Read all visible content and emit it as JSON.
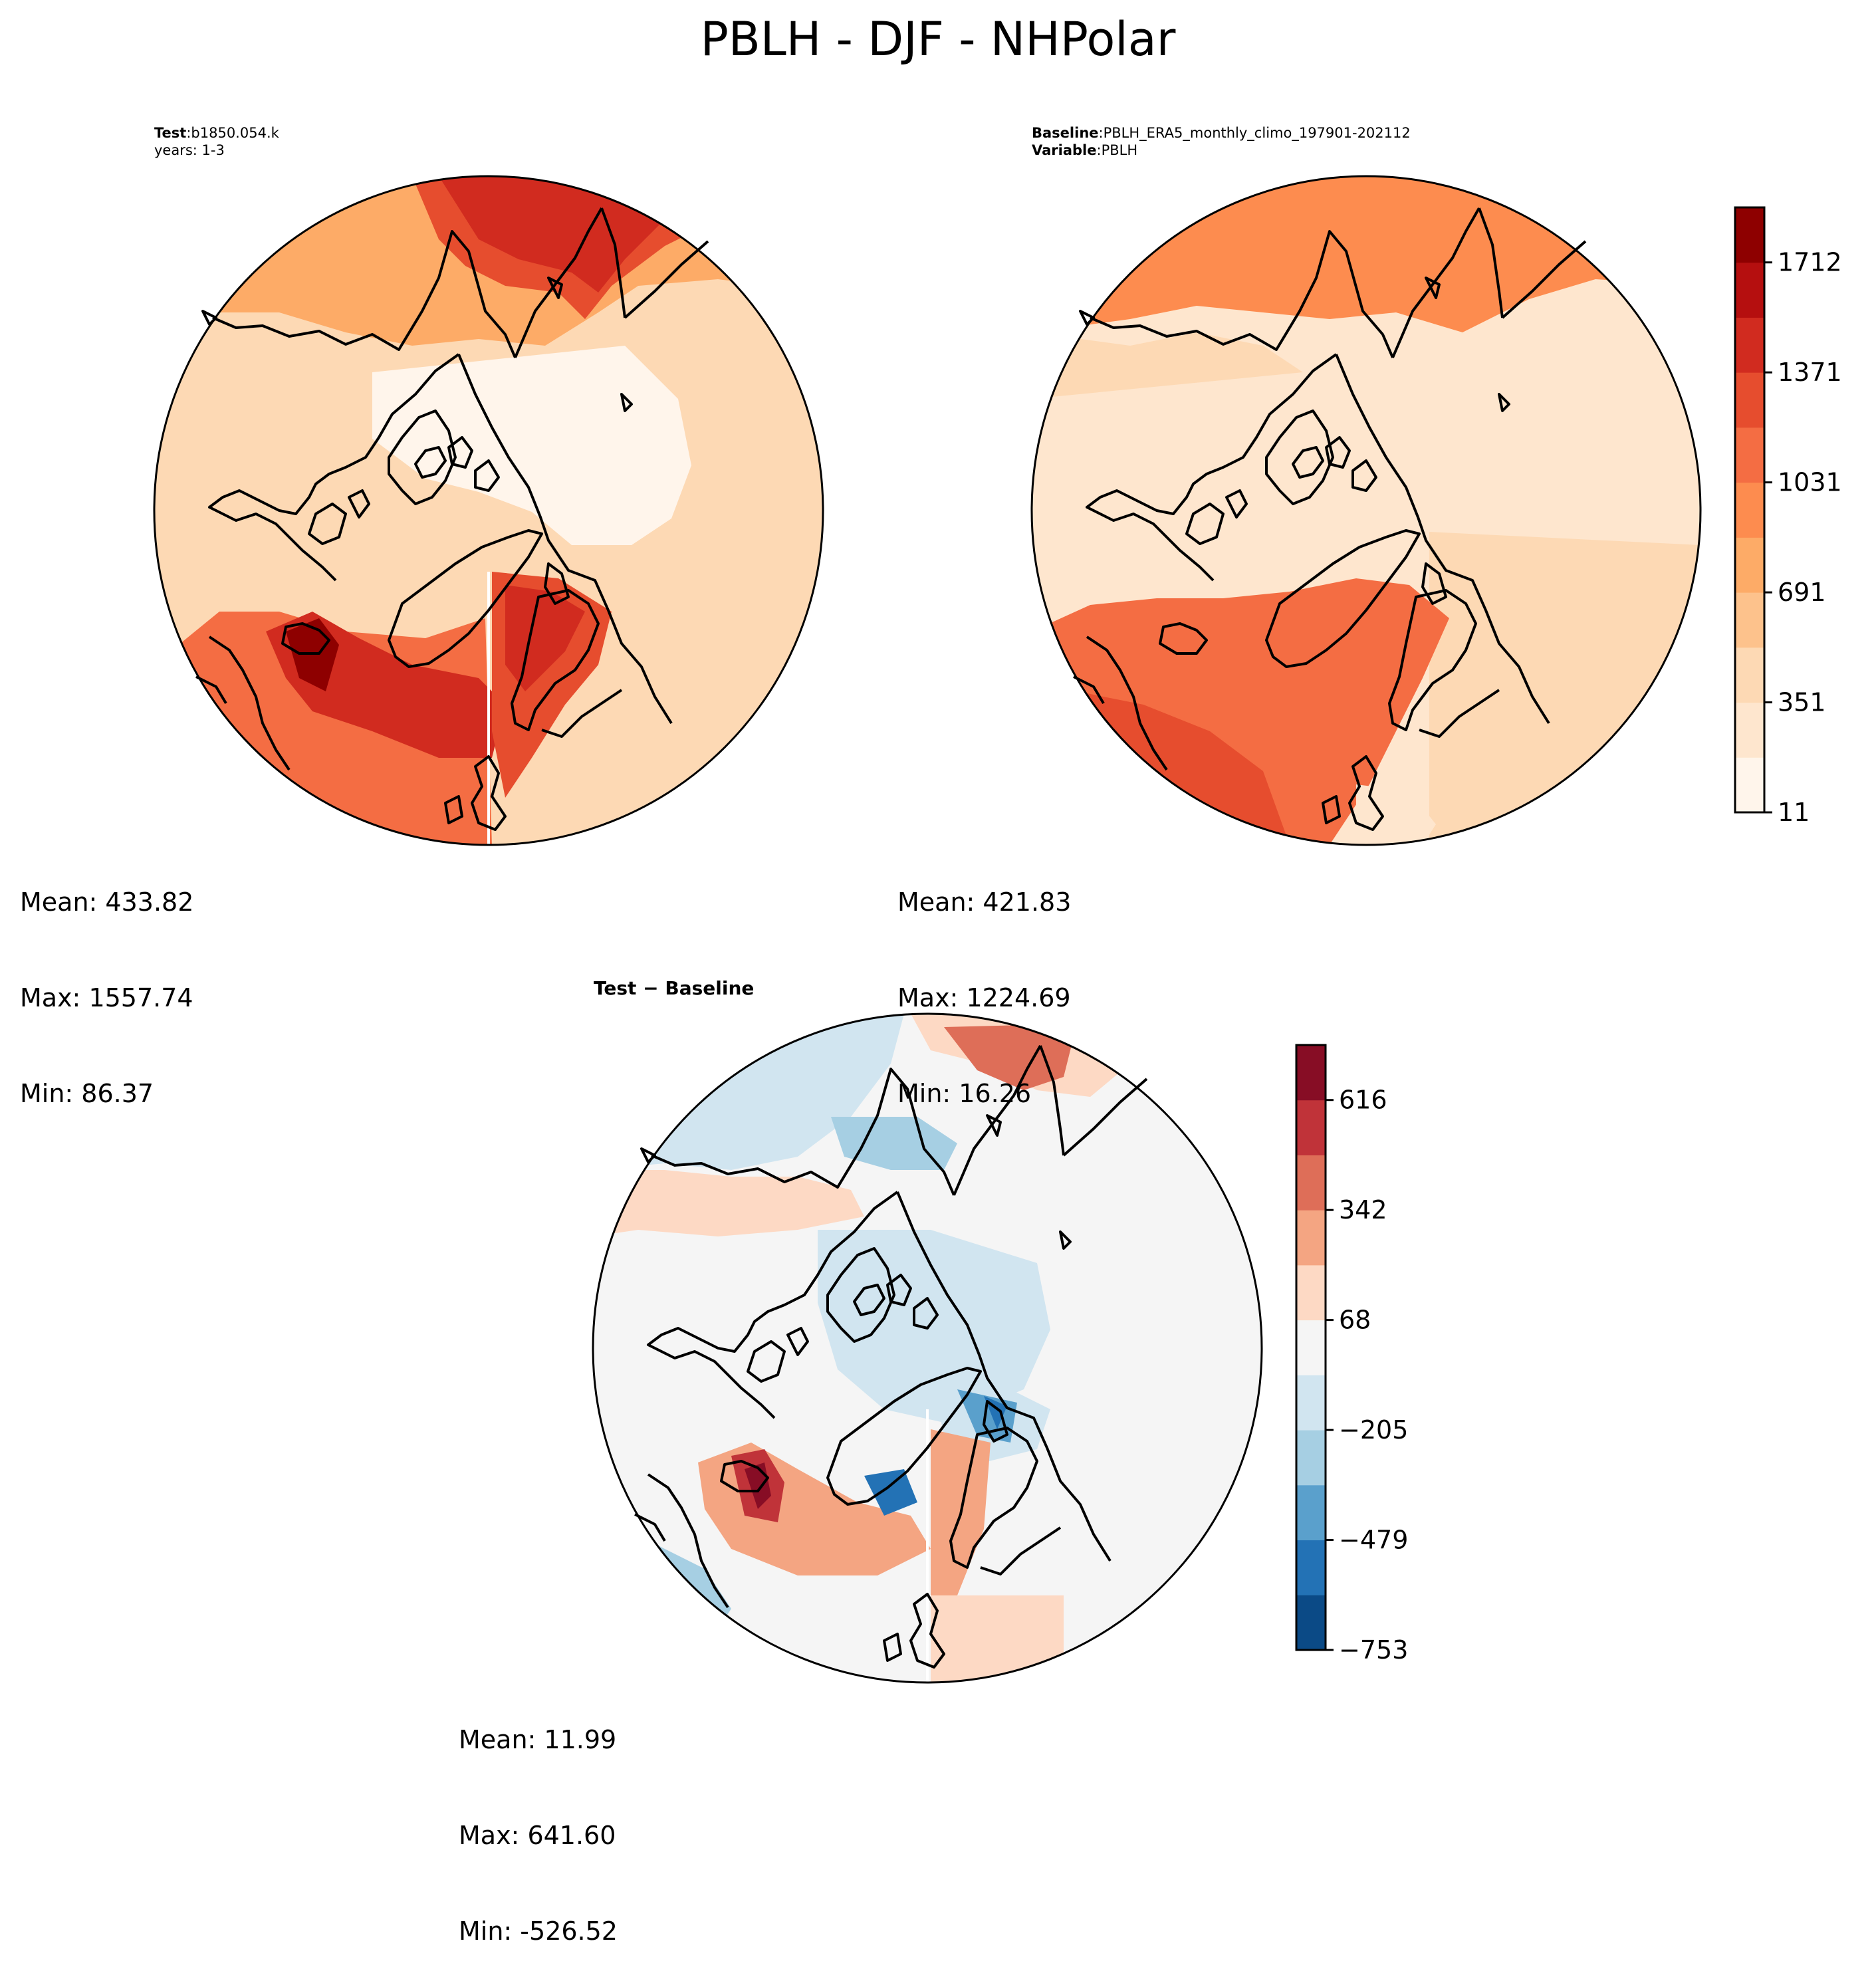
{
  "figure": {
    "title": "PBLH - DJF - NHPolar"
  },
  "panels": {
    "test": {
      "label_bold": "Test",
      "label_value": "b1850.054.k",
      "years_label": "years: 1-3",
      "stats": {
        "mean": "Mean: 433.82",
        "max": "Max: 1557.74",
        "min": "Min: 86.37"
      }
    },
    "baseline": {
      "label_bold": "Baseline",
      "label_value": "PBLH_ERA5_monthly_climo_197901-202112",
      "variable_bold": "Variable",
      "variable_value": "PBLH",
      "stats": {
        "mean": "Mean: 421.83",
        "max": "Max: 1224.69",
        "min": "Min: 16.26"
      }
    },
    "difference": {
      "title_left": "Test",
      "title_right": "Baseline",
      "stats": {
        "mean": "Mean: 11.99",
        "max": "Max: 641.60",
        "min": "Min: -526.52"
      }
    }
  },
  "colorbars": {
    "abs": {
      "ticks": [
        "11",
        "351",
        "691",
        "1031",
        "1371",
        "1712"
      ],
      "colors": [
        "#fff5eb",
        "#fee6ce",
        "#fdd9b4",
        "#fdc28c",
        "#fdab67",
        "#fd8c4f",
        "#f46d43",
        "#e64d2e",
        "#d12b1f",
        "#b50f0f",
        "#8e0000"
      ]
    },
    "diff": {
      "ticks": [
        "−753",
        "−479",
        "−205",
        "68",
        "342",
        "616"
      ],
      "colors": [
        "#0b4a86",
        "#2372b5",
        "#5aa0cc",
        "#a6cfe3",
        "#d1e5f0",
        "#f5f5f5",
        "#fdd9c4",
        "#f4a582",
        "#de6e58",
        "#c03339",
        "#870d25"
      ]
    }
  }
}
